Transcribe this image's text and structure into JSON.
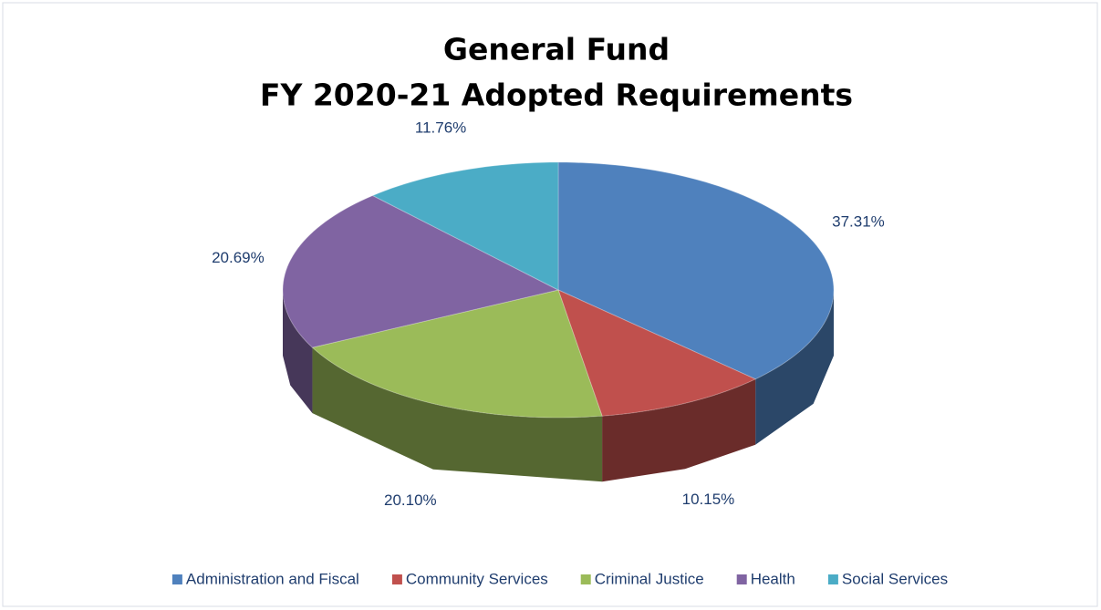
{
  "chart_data": {
    "type": "pie3d",
    "title": "General Fund",
    "subtitle": "FY 2020-21 Adopted Requirements",
    "categories": [
      "Administration and Fiscal",
      "Community Services",
      "Criminal Justice",
      "Health",
      "Social Services"
    ],
    "values": [
      37.31,
      10.15,
      20.1,
      20.69,
      11.76
    ],
    "value_labels": [
      "37.31%",
      "10.15%",
      "20.10%",
      "20.69%",
      "11.76%"
    ],
    "colors": [
      "#4f81bd",
      "#c0504d",
      "#9bbb59",
      "#8064a2",
      "#4bacc6"
    ],
    "legend": "bottom"
  }
}
